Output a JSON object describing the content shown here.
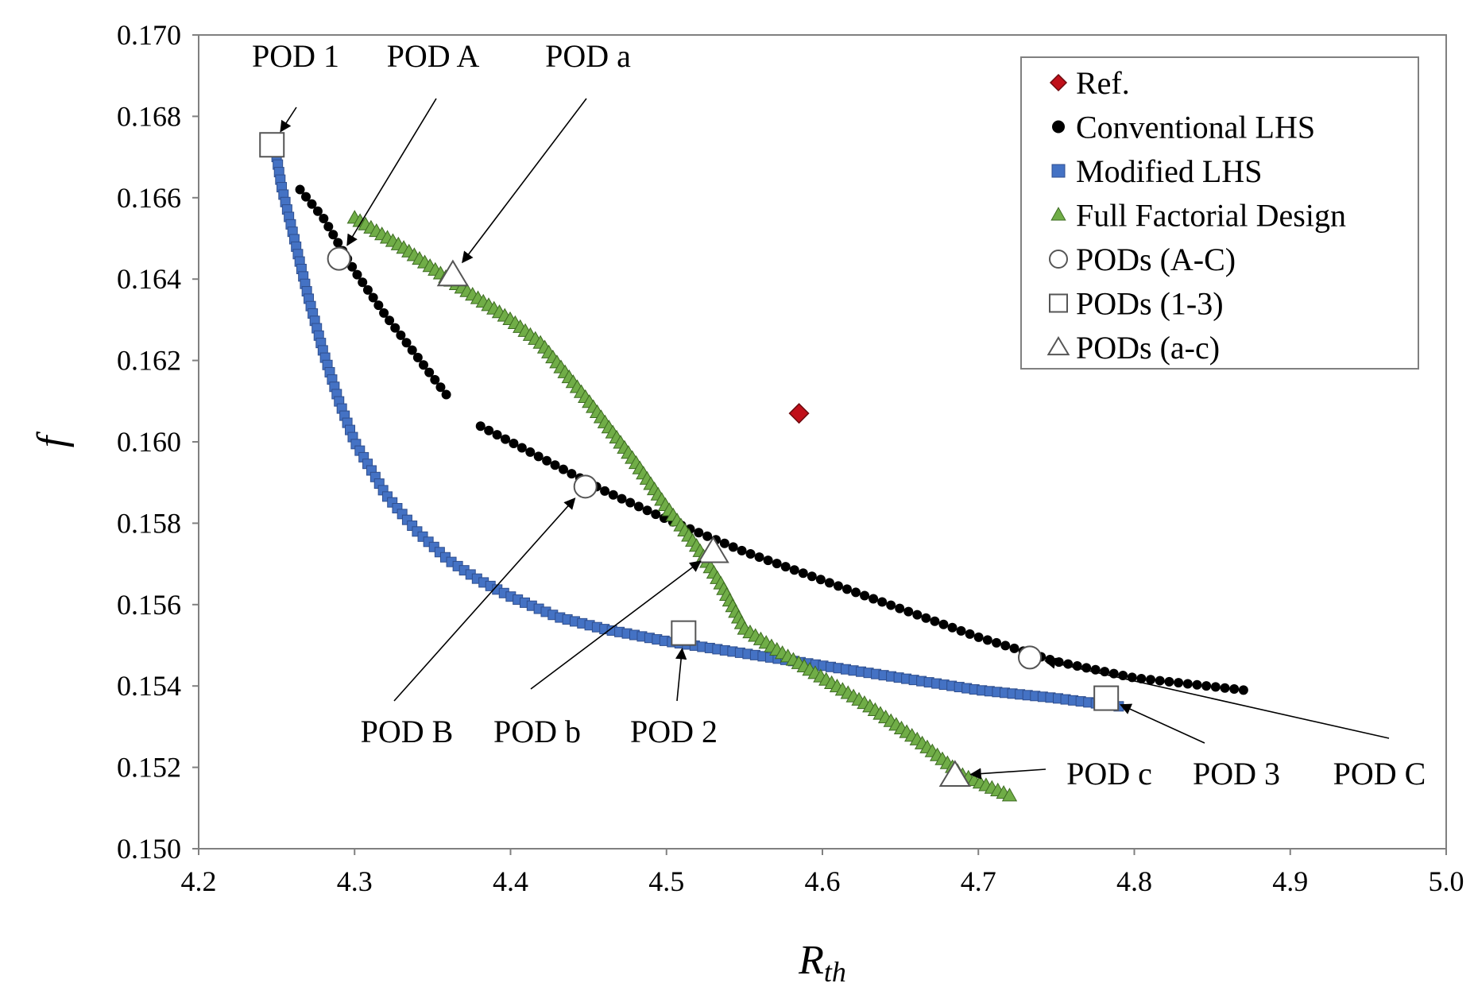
{
  "chart_data": {
    "type": "scatter",
    "title": "",
    "xlabel": "R",
    "xlabel_sub": "th",
    "ylabel": "f",
    "xlim": [
      4.2,
      5.0
    ],
    "ylim": [
      0.15,
      0.17
    ],
    "x_ticks": [
      "4.2",
      "4.3",
      "4.4",
      "4.5",
      "4.6",
      "4.7",
      "4.8",
      "4.9",
      "5.0"
    ],
    "y_ticks": [
      "0.150",
      "0.152",
      "0.154",
      "0.156",
      "0.158",
      "0.160",
      "0.162",
      "0.164",
      "0.166",
      "0.168",
      "0.170"
    ],
    "grid": false,
    "legend_position": "top-right",
    "series": [
      {
        "name": "Ref.",
        "marker": "diamond",
        "color": "#c0101a",
        "points": [
          [
            4.585,
            0.1607
          ]
        ]
      },
      {
        "name": "Conventional LHS",
        "marker": "dot",
        "color": "#000000",
        "curve": [
          [
            4.265,
            0.1662
          ],
          [
            4.28,
            0.1655
          ],
          [
            4.3,
            0.1642
          ],
          [
            4.32,
            0.1631
          ],
          [
            4.34,
            0.1621
          ],
          [
            4.36,
            0.1611
          ],
          [
            4.38,
            0.1604
          ],
          [
            4.4,
            0.16
          ],
          [
            4.43,
            0.1594
          ],
          [
            4.46,
            0.1588
          ],
          [
            4.5,
            0.1581
          ],
          [
            4.55,
            0.1573
          ],
          [
            4.6,
            0.1566
          ],
          [
            4.65,
            0.1559
          ],
          [
            4.7,
            0.1552
          ],
          [
            4.75,
            0.1546
          ],
          [
            4.8,
            0.1542
          ],
          [
            4.87,
            0.1539
          ]
        ],
        "gaps": [
          [
            4.36,
            4.38
          ]
        ],
        "count": 120
      },
      {
        "name": "Modified LHS",
        "marker": "square",
        "color": "#4472c4",
        "curve": [
          [
            4.25,
            0.167
          ],
          [
            4.253,
            0.1663
          ],
          [
            4.26,
            0.1652
          ],
          [
            4.27,
            0.1636
          ],
          [
            4.28,
            0.1622
          ],
          [
            4.29,
            0.161
          ],
          [
            4.3,
            0.16
          ],
          [
            4.32,
            0.1587
          ],
          [
            4.34,
            0.1578
          ],
          [
            4.36,
            0.1571
          ],
          [
            4.38,
            0.1566
          ],
          [
            4.4,
            0.1562
          ],
          [
            4.43,
            0.1557
          ],
          [
            4.46,
            0.1554
          ],
          [
            4.5,
            0.1551
          ],
          [
            4.55,
            0.1548
          ],
          [
            4.6,
            0.1545
          ],
          [
            4.65,
            0.1542
          ],
          [
            4.7,
            0.1539
          ],
          [
            4.75,
            0.1537
          ],
          [
            4.79,
            0.1535
          ]
        ],
        "count": 150
      },
      {
        "name": "Full Factorial Design",
        "marker": "triangle",
        "color": "#70ad47",
        "curve": [
          [
            4.3,
            0.1655
          ],
          [
            4.33,
            0.1648
          ],
          [
            4.36,
            0.164
          ],
          [
            4.4,
            0.163
          ],
          [
            4.42,
            0.1624
          ],
          [
            4.45,
            0.161
          ],
          [
            4.48,
            0.1595
          ],
          [
            4.5,
            0.1584
          ],
          [
            4.52,
            0.1574
          ],
          [
            4.535,
            0.1565
          ],
          [
            4.55,
            0.1554
          ],
          [
            4.57,
            0.1549
          ],
          [
            4.6,
            0.1542
          ],
          [
            4.63,
            0.1535
          ],
          [
            4.66,
            0.1527
          ],
          [
            4.69,
            0.1518
          ],
          [
            4.72,
            0.1513
          ]
        ],
        "count": 140
      },
      {
        "name": "PODs (A-C)",
        "marker": "circle-open",
        "color": "#000000",
        "points": [
          [
            4.29,
            0.1645
          ],
          [
            4.448,
            0.1589
          ],
          [
            4.733,
            0.1547
          ]
        ]
      },
      {
        "name": "PODs (1-3)",
        "marker": "square-open",
        "color": "#000000",
        "points": [
          [
            4.247,
            0.1673
          ],
          [
            4.511,
            0.1553
          ],
          [
            4.782,
            0.1537
          ]
        ]
      },
      {
        "name": "PODs (a-c)",
        "marker": "triangle-open",
        "color": "#000000",
        "points": [
          [
            4.363,
            0.1641
          ],
          [
            4.53,
            0.1573
          ],
          [
            4.685,
            0.1518
          ]
        ]
      }
    ],
    "annotations": [
      {
        "label": "POD 1",
        "target": [
          4.247,
          0.1673
        ]
      },
      {
        "label": "POD A",
        "target": [
          4.29,
          0.1645
        ]
      },
      {
        "label": "POD a",
        "target": [
          4.363,
          0.1641
        ]
      },
      {
        "label": "POD B",
        "target": [
          4.448,
          0.1589
        ]
      },
      {
        "label": "POD b",
        "target": [
          4.53,
          0.1573
        ]
      },
      {
        "label": "POD 2",
        "target": [
          4.511,
          0.1553
        ]
      },
      {
        "label": "POD c",
        "target": [
          4.685,
          0.1518
        ]
      },
      {
        "label": "POD 3",
        "target": [
          4.782,
          0.1537
        ]
      },
      {
        "label": "POD C",
        "target": [
          4.733,
          0.1547
        ]
      }
    ]
  }
}
